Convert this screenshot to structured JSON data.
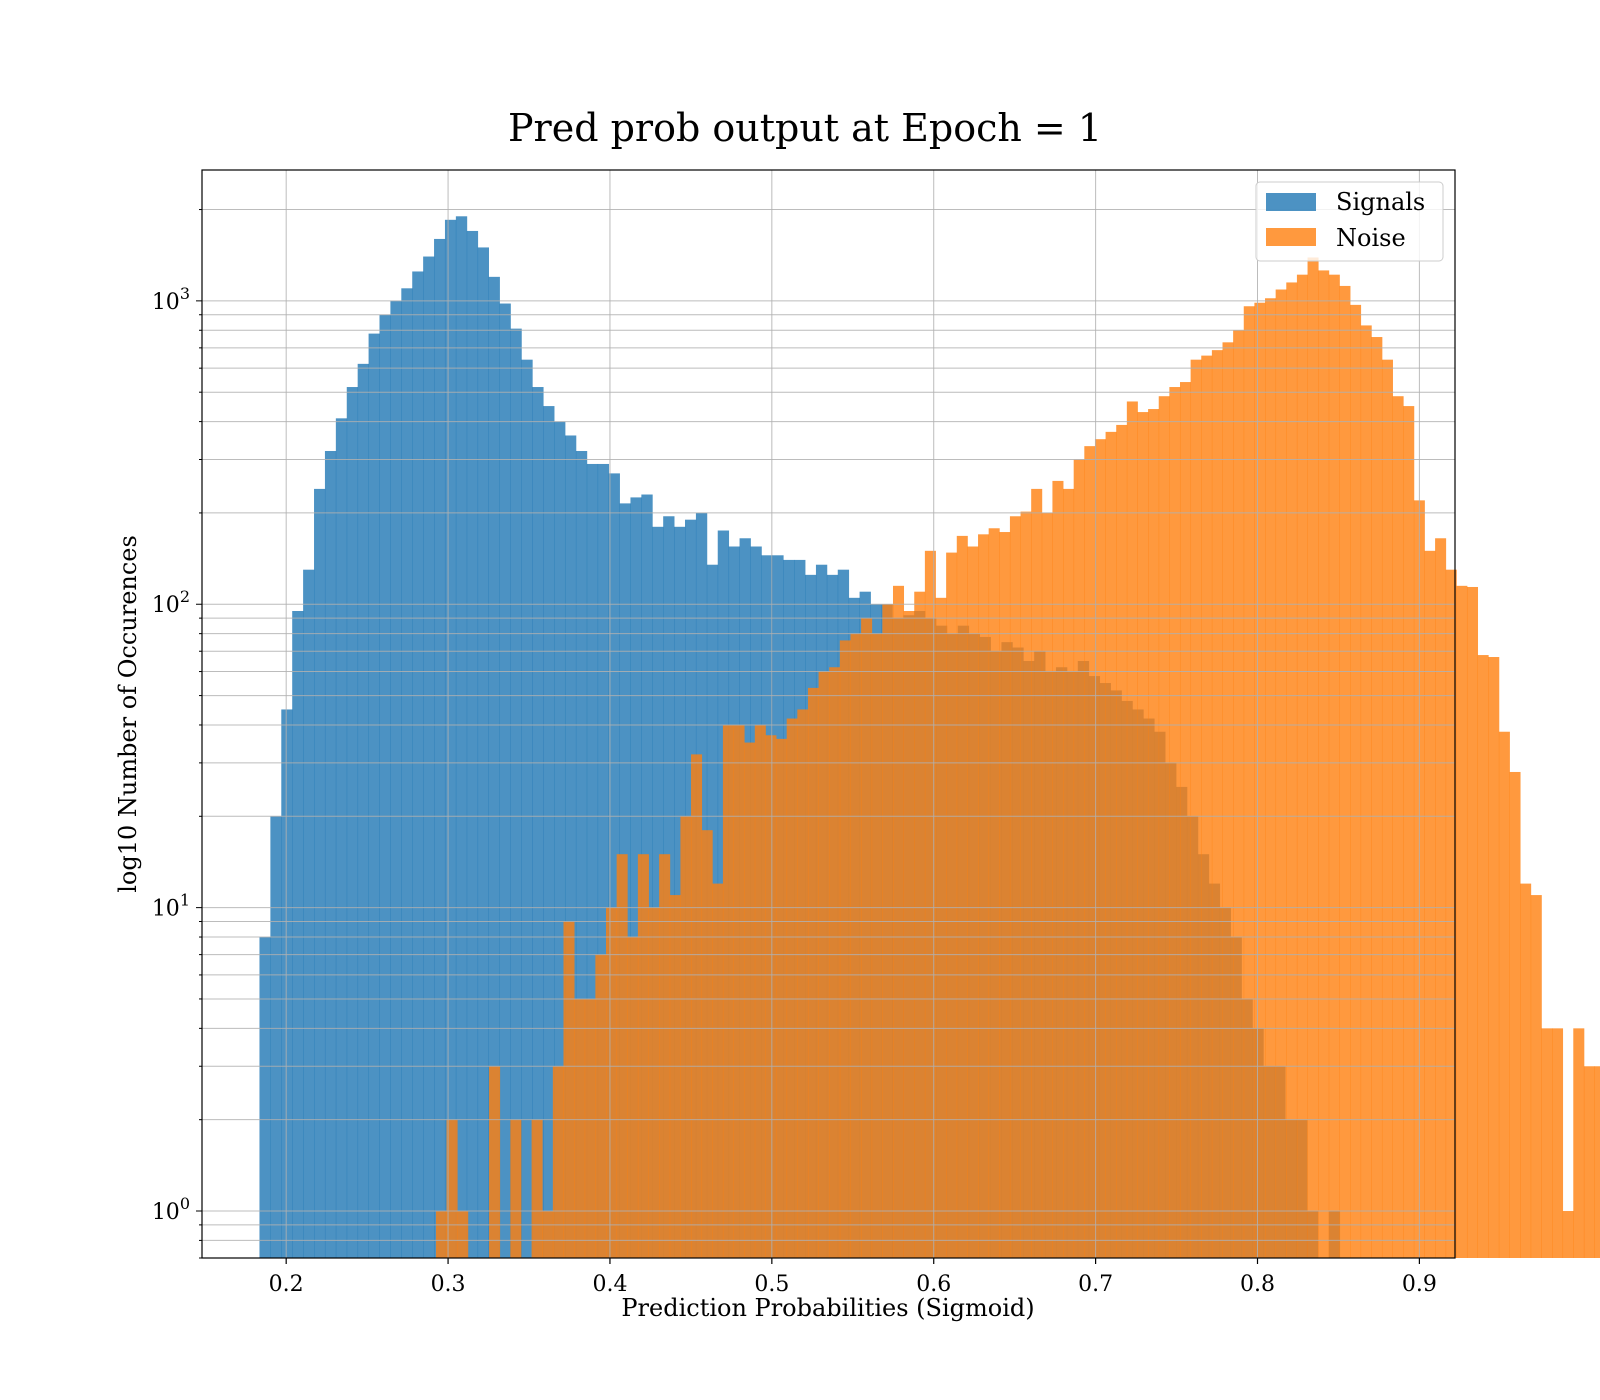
{
  "chart_data": {
    "type": "histogram",
    "title": "Pred prob output at Epoch = 1",
    "xlabel": "Prediction Probabilities (Sigmoid)",
    "ylabel": "log10 Number of Occurences",
    "y_scale": "log",
    "xlim": [
      0.148,
      0.922
    ],
    "ylim": [
      0.7,
      2700
    ],
    "xticks": [
      {
        "value": 0.2,
        "label": "0.2"
      },
      {
        "value": 0.3,
        "label": "0.3"
      },
      {
        "value": 0.4,
        "label": "0.4"
      },
      {
        "value": 0.5,
        "label": "0.5"
      },
      {
        "value": 0.6,
        "label": "0.6"
      },
      {
        "value": 0.7,
        "label": "0.7"
      },
      {
        "value": 0.8,
        "label": "0.8"
      },
      {
        "value": 0.9,
        "label": "0.9"
      }
    ],
    "yticks": [
      {
        "value": 1,
        "base": "10",
        "exp": "0"
      },
      {
        "value": 10,
        "base": "10",
        "exp": "1"
      },
      {
        "value": 100,
        "base": "10",
        "exp": "2"
      },
      {
        "value": 1000,
        "base": "10",
        "exp": "3"
      }
    ],
    "grid": true,
    "legend_position": "upper-right",
    "series": [
      {
        "name": "Signals",
        "color": "#1f77b4",
        "opacity": 0.8,
        "bin_start": 0.1835,
        "bin_width": 0.00674,
        "counts": [
          8,
          20,
          45,
          95,
          130,
          240,
          320,
          410,
          520,
          620,
          780,
          900,
          1000,
          1100,
          1250,
          1400,
          1600,
          1850,
          1900,
          1700,
          1500,
          1200,
          980,
          810,
          640,
          520,
          450,
          400,
          360,
          320,
          290,
          290,
          270,
          215,
          225,
          230,
          180,
          195,
          180,
          190,
          200,
          135,
          175,
          155,
          165,
          155,
          145,
          145,
          140,
          140,
          125,
          135,
          125,
          130,
          105,
          110,
          100,
          100,
          90,
          92,
          95,
          90,
          85,
          80,
          85,
          80,
          78,
          70,
          75,
          72,
          65,
          70,
          60,
          62,
          60,
          65,
          58,
          55,
          52,
          48,
          45,
          42,
          38,
          30,
          25,
          20,
          15,
          12,
          10,
          8,
          5,
          4,
          3,
          3,
          2,
          2,
          1,
          0,
          1
        ]
      },
      {
        "name": "Noise",
        "color": "#ff7f0e",
        "opacity": 0.8,
        "bin_start": 0.2925,
        "bin_width": 0.006566,
        "counts": [
          1,
          2,
          1,
          0,
          0,
          3,
          0,
          2,
          0,
          2,
          1,
          3,
          9,
          5,
          5,
          7,
          10,
          15,
          8,
          15,
          10,
          15,
          11,
          20,
          32,
          18,
          12,
          40,
          40,
          35,
          40,
          37,
          36,
          42,
          45,
          53,
          60,
          62,
          76,
          80,
          90,
          80,
          100,
          115,
          95,
          110,
          150,
          105,
          148,
          168,
          155,
          170,
          178,
          173,
          195,
          202,
          240,
          200,
          255,
          240,
          300,
          332,
          350,
          370,
          390,
          466,
          430,
          440,
          485,
          520,
          540,
          640,
          660,
          688,
          730,
          800,
          960,
          986,
          1020,
          1090,
          1150,
          1220,
          1390,
          1260,
          1220,
          1120,
          970,
          830,
          760,
          640,
          485,
          450,
          220,
          150,
          165,
          130,
          115,
          114,
          68,
          67,
          38,
          28,
          12,
          11,
          4,
          4,
          1,
          4,
          3,
          3,
          4,
          4,
          0,
          3,
          4
        ]
      }
    ]
  }
}
